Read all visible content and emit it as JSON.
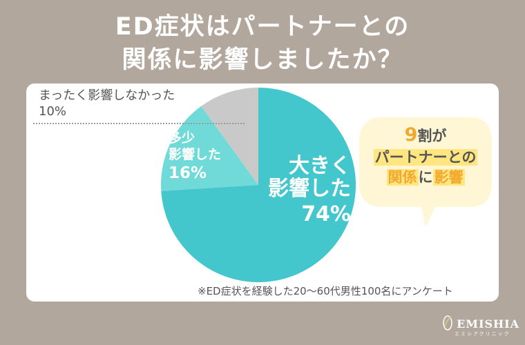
{
  "title": {
    "line1": "ED症状はパートナーとの",
    "line2": "関係に影響しましたか？"
  },
  "chart_data": {
    "type": "pie",
    "slices": [
      {
        "label_lines": [
          "大きく",
          "影響した"
        ],
        "value": 74,
        "value_label": "74%",
        "color": "#44c7cc"
      },
      {
        "label_lines": [
          "多少",
          "影響した"
        ],
        "value": 16,
        "value_label": "16%",
        "color": "#6fdad8"
      },
      {
        "label_lines": [
          "まったく影響しなかった"
        ],
        "value": 10,
        "value_label": "10%",
        "color": "#c9c9c9"
      }
    ]
  },
  "bubble": {
    "num": "9",
    "wari": "割",
    "ga": "が",
    "line2": "パートナーとの",
    "kan": "関係",
    "ni": "に",
    "eikyo": "影響"
  },
  "note": "※ED症状を経験した20〜60代男性100名にアンケート",
  "logo": {
    "name": "EMISHIA",
    "sub": "エミシアクリニック"
  },
  "colors": {
    "background": "#b2a79d",
    "accent": "#f2a82c",
    "highlight": "#ffe680"
  }
}
